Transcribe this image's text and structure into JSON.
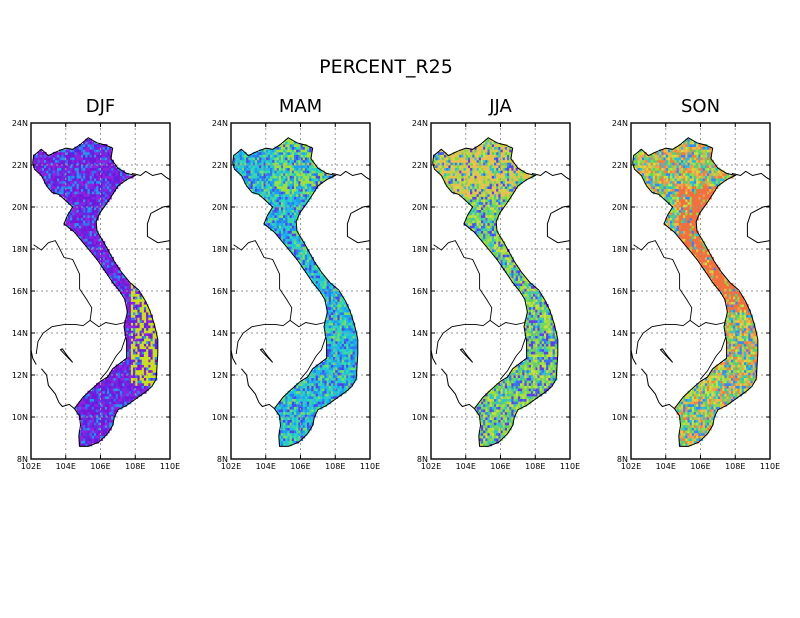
{
  "figure": {
    "title": "PERCENT_R25"
  },
  "panels": [
    {
      "title": "DJF",
      "scheme": [
        "#7b12d6",
        "#8e22e0",
        "#5a30e6",
        "#6020e0",
        "#3a6cf0",
        "#2596f0",
        "#8e22e0",
        "#7a18d8"
      ],
      "hot": "#c8e020"
    },
    {
      "title": "MAM",
      "scheme": [
        "#1ea0f0",
        "#20c4dc",
        "#3ad8a8",
        "#6ee070",
        "#2a7af0",
        "#4a46e8",
        "#22b8e6",
        "#30d0c0"
      ],
      "hot": "#9ee040"
    },
    {
      "title": "JJA",
      "scheme": [
        "#70d860",
        "#a8e040",
        "#c8e040",
        "#58d070",
        "#3a70f0",
        "#5a40e8",
        "#30c0d8",
        "#8ed850"
      ],
      "hot": "#e8c050"
    },
    {
      "title": "SON",
      "scheme": [
        "#3a86f0",
        "#28c0d8",
        "#5ad070",
        "#90dc48",
        "#c8e040",
        "#e8c048",
        "#f0a050",
        "#f08040"
      ],
      "hot": "#f07040"
    }
  ],
  "axes": {
    "x_ticks": [
      "102E",
      "104E",
      "106E",
      "108E",
      "110E"
    ],
    "y_ticks": [
      "24N",
      "22N",
      "20N",
      "18N",
      "16N",
      "14N",
      "12N",
      "10N",
      "8N"
    ],
    "lon_range": [
      102,
      110
    ],
    "lat_range": [
      8,
      24
    ]
  }
}
